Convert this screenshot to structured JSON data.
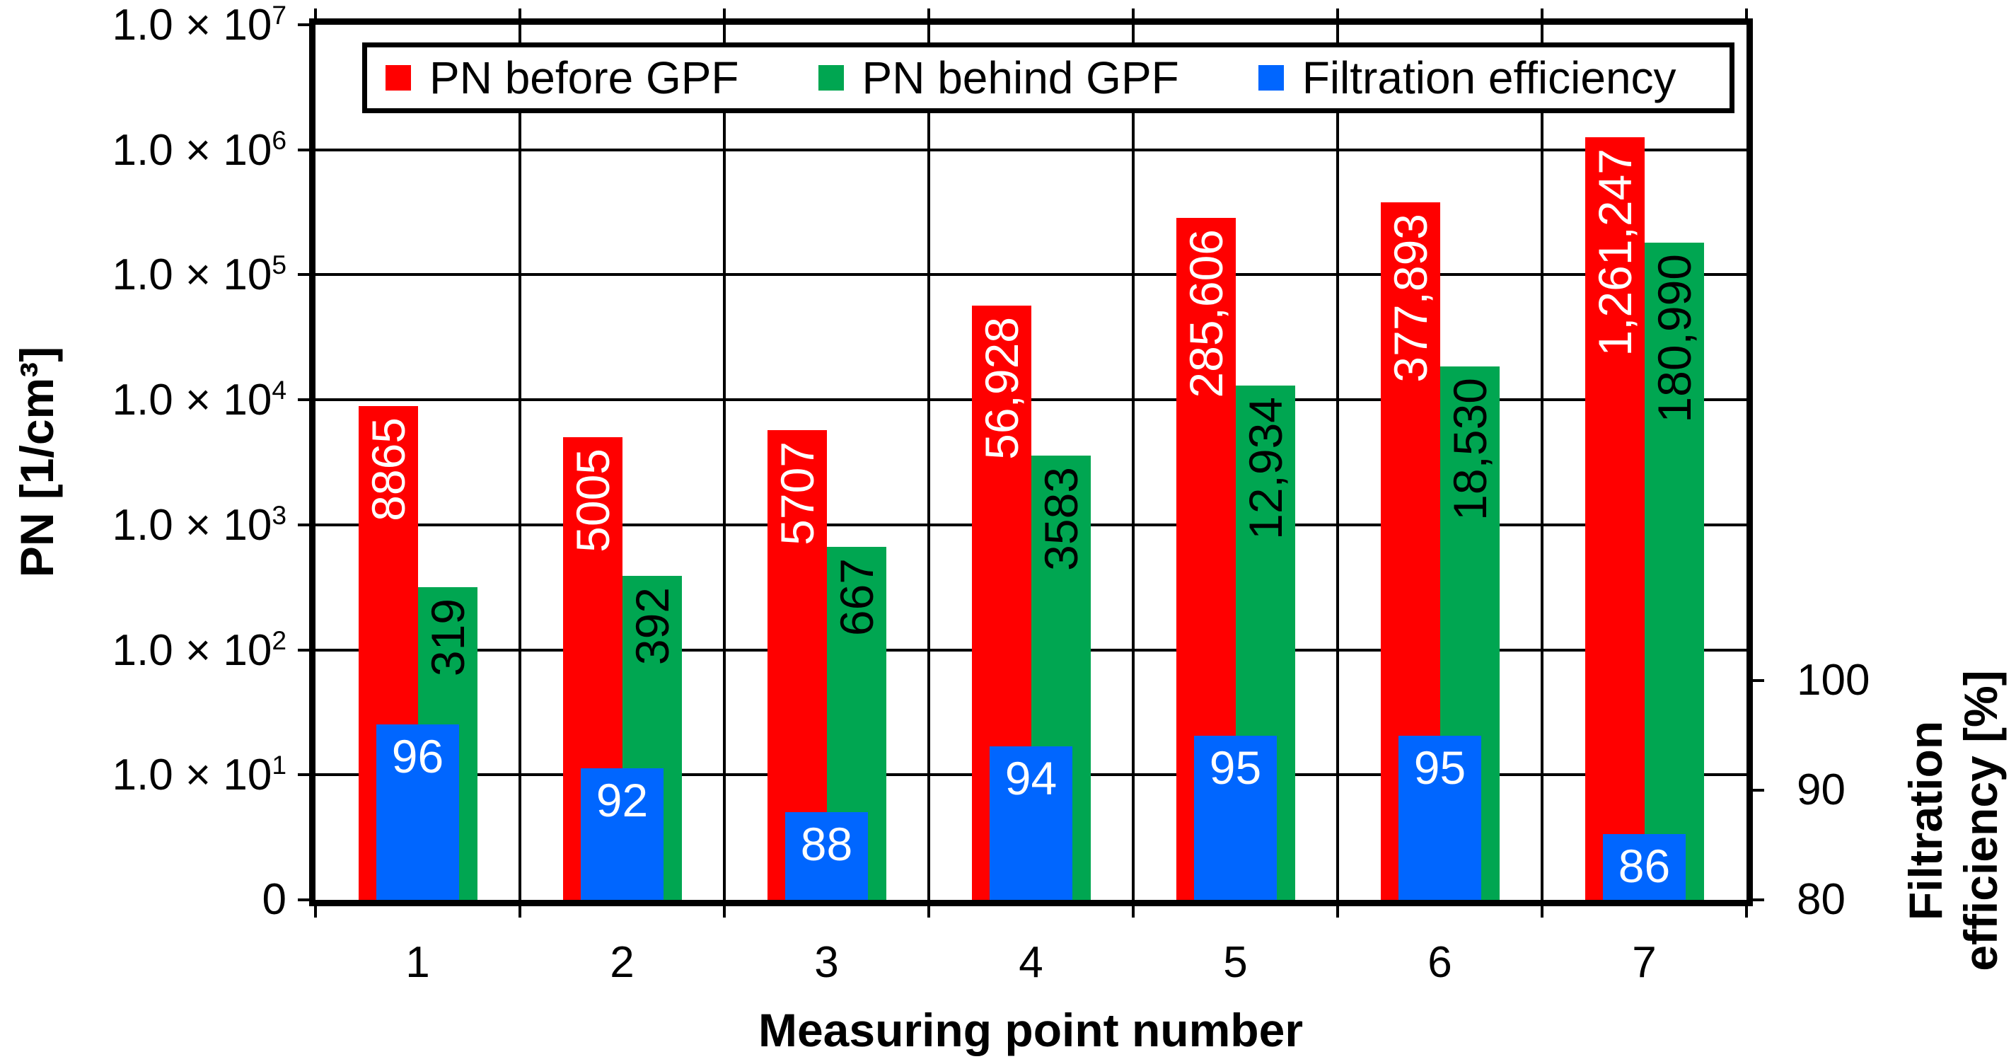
{
  "chart_data": {
    "type": "bar",
    "title": "",
    "xlabel": "Measuring point number",
    "ylabel_left": "PN [1/cm³]",
    "ylabel_right_lines": [
      "Filtration",
      "efficiency [%]"
    ],
    "categories": [
      "1",
      "2",
      "3",
      "4",
      "5",
      "6",
      "7"
    ],
    "grid": true,
    "legend_position": "top",
    "left_axis": {
      "scale": "log",
      "ylim": [
        1,
        10000000
      ],
      "tick_labels": [
        {
          "base": "1.0 × 10",
          "exp": "7"
        },
        {
          "base": "1.0 × 10",
          "exp": "6"
        },
        {
          "base": "1.0 × 10",
          "exp": "5"
        },
        {
          "base": "1.0 × 10",
          "exp": "4"
        },
        {
          "base": "1.0 × 10",
          "exp": "3"
        },
        {
          "base": "1.0 × 10",
          "exp": "2"
        },
        {
          "base": "1.0 × 10",
          "exp": "1"
        },
        {
          "base": "0",
          "exp": ""
        }
      ]
    },
    "right_axis": {
      "scale": "linear",
      "ylim": [
        80,
        100
      ],
      "ticks": [
        {
          "label": "100",
          "value": 100
        },
        {
          "label": "90",
          "value": 90
        },
        {
          "label": "80",
          "value": 80
        }
      ]
    },
    "series": [
      {
        "id": "pn-before-gpf",
        "name": "PN before GPF",
        "color": "#FF0000",
        "label_color": "#FFFFFF",
        "axis": "left",
        "values": [
          8865,
          5005,
          5707,
          56928,
          285606,
          377893,
          1261247
        ],
        "labels": [
          "8865",
          "5005",
          "5707",
          "56,928",
          "285,606",
          "377,893",
          "1,261,247"
        ]
      },
      {
        "id": "pn-behind-gpf",
        "name": "PN behind GPF",
        "color": "#00A651",
        "label_color": "#000000",
        "axis": "left",
        "values": [
          319,
          392,
          667,
          3583,
          12934,
          18530,
          180990
        ],
        "labels": [
          "319",
          "392",
          "667",
          "3583",
          "12,934",
          "18,530",
          "180,990"
        ]
      },
      {
        "id": "filtration-efficiency",
        "name": "Filtration efficiency",
        "color": "#0066FF",
        "label_color": "#FFFFFF",
        "axis": "right",
        "values": [
          96,
          92,
          88,
          94,
          95,
          95,
          86
        ],
        "labels": [
          "96",
          "92",
          "88",
          "94",
          "95",
          "95",
          "86"
        ]
      }
    ]
  }
}
